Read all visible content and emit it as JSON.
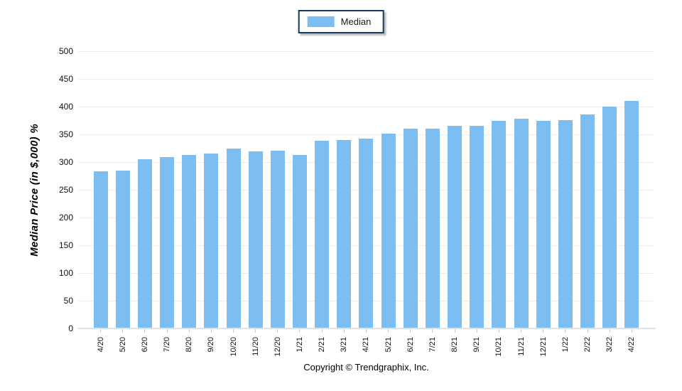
{
  "legend": {
    "items": [
      {
        "label": "Median",
        "swatch_color": "#7CBDF2"
      }
    ]
  },
  "chart_data": {
    "type": "bar",
    "title": "",
    "xlabel": "",
    "ylabel": "Median Price (in $,000) %",
    "ylim": [
      0,
      500
    ],
    "ytick_step": 50,
    "grid": "horizontal",
    "legend_position": "top-center",
    "categories": [
      "4/20",
      "5/20",
      "6/20",
      "7/20",
      "8/20",
      "9/20",
      "10/20",
      "11/20",
      "12/20",
      "1/21",
      "2/21",
      "3/21",
      "4/21",
      "5/21",
      "6/21",
      "7/21",
      "8/21",
      "9/21",
      "10/21",
      "11/21",
      "12/21",
      "1/22",
      "2/22",
      "3/22",
      "4/22"
    ],
    "series": [
      {
        "name": "Median",
        "color": "#7CBDF2",
        "values": [
          283,
          285,
          305,
          309,
          313,
          315,
          324,
          319,
          320,
          313,
          338,
          340,
          342,
          351,
          360,
          360,
          365,
          366,
          375,
          378,
          375,
          376,
          386,
          400,
          410
        ]
      }
    ]
  },
  "footer": {
    "copyright": "Copyright © Trendgraphix, Inc."
  },
  "colors": {
    "bar": "#7CBDF2",
    "gridline": "#EDEDED",
    "axis_line": "#E2E2E2",
    "tick_mark": "#CFCFCF",
    "legend_border": "#17375E",
    "text": "#000000"
  }
}
